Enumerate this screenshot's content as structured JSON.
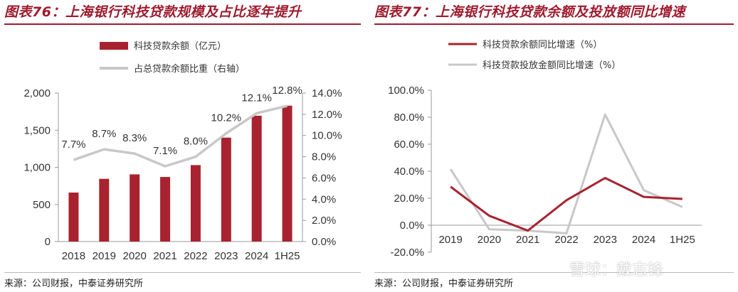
{
  "left_panel": {
    "title": "图表76：上海银行科技贷款规模及占比逐年提升",
    "source": "来源：公司财报，中泰证券研究所"
  },
  "right_panel": {
    "title": "图表77：上海银行科技贷款余额及投放额同比增速",
    "source": "来源：公司财报，中泰证券研究所"
  },
  "watermark": "雪球：戴志锋",
  "colors": {
    "accent": "#9e1b2e",
    "bar": "#a8232f",
    "line_gray": "#c8c8c8",
    "line_red": "#a8232f"
  },
  "chart_data": [
    {
      "type": "bar",
      "title": "",
      "categories": [
        "2018",
        "2019",
        "2020",
        "2021",
        "2022",
        "2023",
        "2024",
        "1H25"
      ],
      "series": [
        {
          "name": "科技贷款余额（亿元）",
          "type": "bar",
          "axis": "left",
          "values": [
            660,
            845,
            905,
            870,
            1030,
            1400,
            1695,
            1830
          ]
        },
        {
          "name": "占总贷款余额比重（右轴）",
          "type": "line",
          "axis": "right",
          "values": [
            7.7,
            8.7,
            8.3,
            7.1,
            8.0,
            10.2,
            12.1,
            12.8
          ],
          "labels": [
            "7.7%",
            "8.7%",
            "8.3%",
            "7.1%",
            "8.0%",
            "10.2%",
            "12.1%",
            "12.8%"
          ]
        }
      ],
      "y_left": {
        "min": 0,
        "max": 2000,
        "ticks": [
          "0",
          "500",
          "1,000",
          "1,500",
          "2,000"
        ]
      },
      "y_right": {
        "min": 0,
        "max": 14,
        "ticks": [
          "0.0%",
          "2.0%",
          "4.0%",
          "6.0%",
          "8.0%",
          "10.0%",
          "12.0%",
          "14.0%"
        ]
      },
      "grid": false,
      "legend": "top"
    },
    {
      "type": "line",
      "title": "",
      "categories": [
        "2019",
        "2020",
        "2021",
        "2022",
        "2023",
        "2024",
        "1H25"
      ],
      "series": [
        {
          "name": "科技贷款余额同比增速（%）",
          "values": [
            28.5,
            7.0,
            -4.0,
            18.5,
            35.0,
            21.0,
            19.5
          ]
        },
        {
          "name": "科技贷款投放金额同比增速（%）",
          "values": [
            41.5,
            -3.0,
            -4.0,
            -6.0,
            82.0,
            26.0,
            13.5
          ]
        }
      ],
      "y": {
        "min": -20,
        "max": 100,
        "ticks": [
          "-20.0%",
          "0.0%",
          "20.0%",
          "40.0%",
          "60.0%",
          "80.0%",
          "100.0%"
        ]
      },
      "grid": false,
      "legend": "top"
    }
  ]
}
